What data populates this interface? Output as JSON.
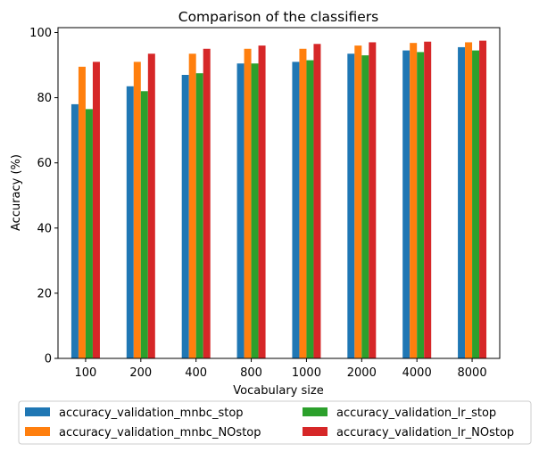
{
  "chart_data": {
    "type": "bar",
    "title": "Comparison of the classifiers",
    "xlabel": "Vocabulary size",
    "ylabel": "Accuracy (%)",
    "ylim": [
      0,
      101.5
    ],
    "yticks": [
      0,
      20,
      40,
      60,
      80,
      100
    ],
    "categories": [
      "100",
      "200",
      "400",
      "800",
      "1000",
      "2000",
      "4000",
      "8000"
    ],
    "series": [
      {
        "name": "accuracy_validation_mnbc_stop",
        "color": "#1f77b4",
        "values": [
          78.0,
          83.5,
          87.0,
          90.5,
          91.0,
          93.5,
          94.5,
          95.5
        ]
      },
      {
        "name": "accuracy_validation_mnbc_NOstop",
        "color": "#ff7f0e",
        "values": [
          89.5,
          91.0,
          93.5,
          95.0,
          95.0,
          96.0,
          96.8,
          97.0
        ]
      },
      {
        "name": "accuracy_validation_lr_stop",
        "color": "#2ca02c",
        "values": [
          76.5,
          82.0,
          87.5,
          90.5,
          91.5,
          93.0,
          94.0,
          94.5
        ]
      },
      {
        "name": "accuracy_validation_lr_NOstop",
        "color": "#d62728",
        "values": [
          91.0,
          93.5,
          95.0,
          96.0,
          96.5,
          97.0,
          97.2,
          97.5
        ]
      }
    ],
    "legend_position": "bottom-center",
    "grid": false
  }
}
